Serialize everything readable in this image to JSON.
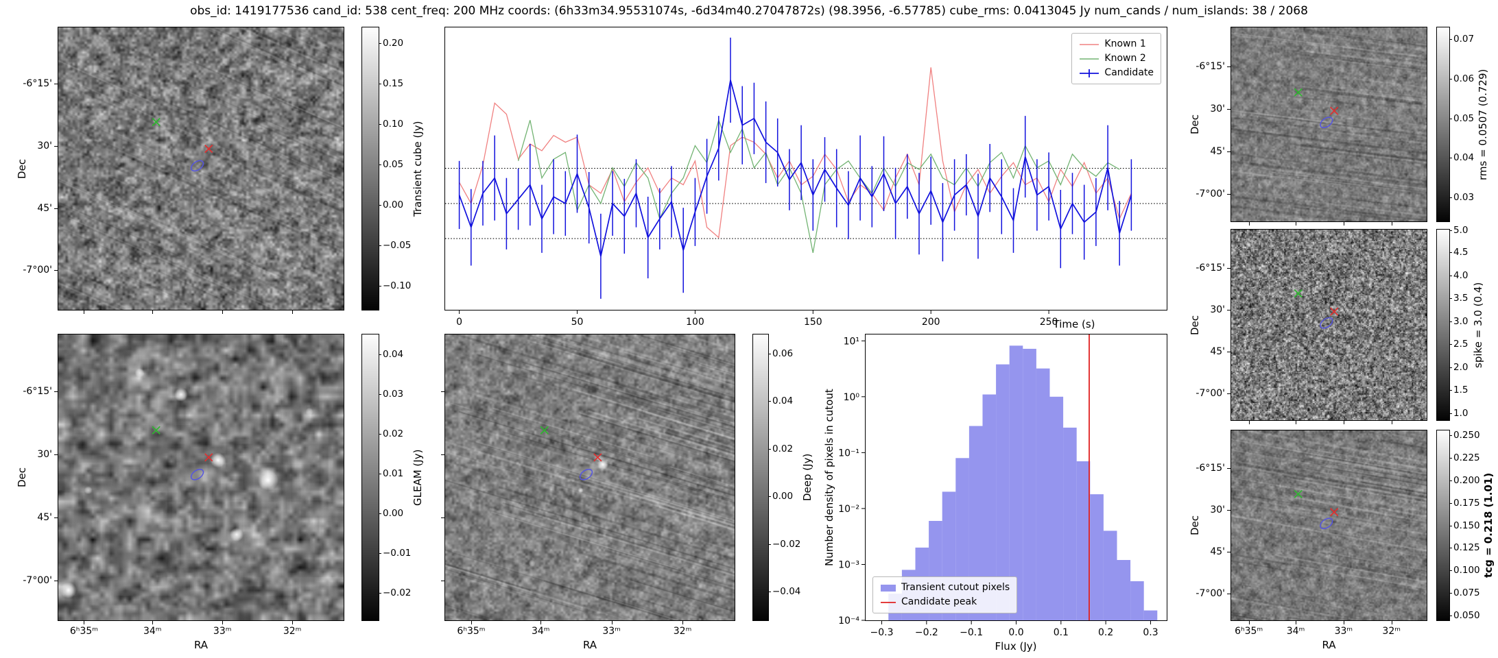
{
  "title": "obs_id: 1419177536 cand_id: 538 cent_freq: 200 MHz coords: (6h33m34.95531074s, -6d34m40.27047872s) (98.3956, -6.57785) cube_rms: 0.0413045 Jy num_cands / num_islands: 38 / 2068",
  "colors": {
    "candidate": "#1010dd",
    "known1": "#f08080",
    "known2": "#72b372",
    "hist_fill": "#7b7bea",
    "peak_line": "#e02020",
    "marker_green": "#2eb82e",
    "marker_red": "#e03030",
    "marker_blue": "#5555e0"
  },
  "axis": {
    "dec_label": "Dec",
    "ra_label": "RA",
    "dec_ticks": [
      {
        "label": "-6°15'",
        "pos": 0.2
      },
      {
        "label": "30'",
        "pos": 0.42
      },
      {
        "label": "45'",
        "pos": 0.64
      },
      {
        "label": "-7°00'",
        "pos": 0.86
      }
    ],
    "ra_ticks": [
      {
        "label": "6ʰ35ᵐ",
        "pos": 0.09
      },
      {
        "label": "34ᵐ",
        "pos": 0.33
      },
      {
        "label": "33ᵐ",
        "pos": 0.575
      },
      {
        "label": "32ᵐ",
        "pos": 0.82
      }
    ]
  },
  "markers": [
    {
      "name": "known-source-green",
      "shape": "x",
      "color": "#2eb82e",
      "x": 0.343,
      "y": 0.335
    },
    {
      "name": "known-source-red",
      "shape": "x",
      "color": "#e03030",
      "x": 0.527,
      "y": 0.43
    },
    {
      "name": "candidate-ellipse",
      "shape": "ellipse",
      "color": "#5555e0",
      "x": 0.487,
      "y": 0.49
    }
  ],
  "panels": {
    "transient": {
      "dec_labels": true,
      "ra_labels": false,
      "ylabel": "Dec"
    },
    "gleam": {
      "dec_labels": true,
      "ra_labels": true,
      "ylabel": "Dec",
      "xlabel": "RA"
    },
    "deep": {
      "dec_labels": false,
      "ra_labels": true,
      "xlabel": "RA"
    },
    "rms": {
      "dec_labels": true,
      "ra_labels": false,
      "ylabel": "Dec"
    },
    "spike": {
      "dec_labels": true,
      "ra_labels": false,
      "ylabel": "Dec"
    },
    "tcg": {
      "dec_labels": true,
      "ra_labels": true,
      "ylabel": "Dec",
      "xlabel": "RA"
    }
  },
  "colorbars": {
    "transient": {
      "label": "Transient cube (Jy)",
      "bold": false,
      "ticks": [
        {
          "label": "0.20",
          "pos": 0.057
        },
        {
          "label": "0.15",
          "pos": 0.2
        },
        {
          "label": "0.10",
          "pos": 0.343
        },
        {
          "label": "0.05",
          "pos": 0.486
        },
        {
          "label": "0.00",
          "pos": 0.629
        },
        {
          "label": "−0.05",
          "pos": 0.771
        },
        {
          "label": "−0.10",
          "pos": 0.914
        }
      ]
    },
    "gleam": {
      "label": "GLEAM (Jy)",
      "bold": false,
      "ticks": [
        {
          "label": "0.04",
          "pos": 0.069
        },
        {
          "label": "0.03",
          "pos": 0.208
        },
        {
          "label": "0.02",
          "pos": 0.347
        },
        {
          "label": "0.01",
          "pos": 0.486
        },
        {
          "label": "0.00",
          "pos": 0.625
        },
        {
          "label": "−0.01",
          "pos": 0.764
        },
        {
          "label": "−0.02",
          "pos": 0.903
        }
      ]
    },
    "deep": {
      "label": "Deep (Jy)",
      "bold": false,
      "ticks": [
        {
          "label": "0.06",
          "pos": 0.067
        },
        {
          "label": "0.04",
          "pos": 0.233
        },
        {
          "label": "0.02",
          "pos": 0.4
        },
        {
          "label": "0.00",
          "pos": 0.567
        },
        {
          "label": "−0.02",
          "pos": 0.733
        },
        {
          "label": "−0.04",
          "pos": 0.9
        }
      ]
    },
    "rms": {
      "label": "rms = 0.0507 (0.729)",
      "bold": false,
      "ticks": [
        {
          "label": "0.07",
          "pos": 0.061
        },
        {
          "label": "0.06",
          "pos": 0.265
        },
        {
          "label": "0.05",
          "pos": 0.469
        },
        {
          "label": "0.04",
          "pos": 0.673
        },
        {
          "label": "0.03",
          "pos": 0.878
        }
      ]
    },
    "spike": {
      "label": "spike = 3.0 (0.4)",
      "bold": false,
      "ticks": [
        {
          "label": "5.0",
          "pos": 0.005
        },
        {
          "label": "4.5",
          "pos": 0.12
        },
        {
          "label": "4.0",
          "pos": 0.241
        },
        {
          "label": "3.5",
          "pos": 0.361
        },
        {
          "label": "3.0",
          "pos": 0.482
        },
        {
          "label": "2.5",
          "pos": 0.602
        },
        {
          "label": "2.0",
          "pos": 0.723
        },
        {
          "label": "1.5",
          "pos": 0.843
        },
        {
          "label": "1.0",
          "pos": 0.964
        }
      ]
    },
    "tcg": {
      "label": "tcg = 0.218 (1.01)",
      "bold": true,
      "ticks": [
        {
          "label": "0.250",
          "pos": 0.024
        },
        {
          "label": "0.225",
          "pos": 0.143
        },
        {
          "label": "0.200",
          "pos": 0.262
        },
        {
          "label": "0.175",
          "pos": 0.381
        },
        {
          "label": "0.150",
          "pos": 0.5
        },
        {
          "label": "0.125",
          "pos": 0.619
        },
        {
          "label": "0.100",
          "pos": 0.738
        },
        {
          "label": "0.075",
          "pos": 0.857
        },
        {
          "label": "0.050",
          "pos": 0.976
        }
      ]
    }
  },
  "chart_data": [
    {
      "type": "line",
      "title": "",
      "xlabel": "Time (s)",
      "ylabel": "",
      "xlim": [
        -6,
        300
      ],
      "ylim": [
        -0.125,
        0.207
      ],
      "xticks": [
        0,
        50,
        100,
        150,
        200,
        250
      ],
      "hlines": [
        0.0413045,
        0.0,
        -0.0413045
      ],
      "legend_position": "top-right",
      "x": [
        0,
        5,
        10,
        15,
        20,
        25,
        30,
        35,
        40,
        45,
        50,
        55,
        60,
        65,
        70,
        75,
        80,
        85,
        90,
        95,
        100,
        105,
        110,
        115,
        120,
        125,
        130,
        135,
        140,
        145,
        150,
        155,
        160,
        165,
        170,
        175,
        180,
        185,
        190,
        195,
        200,
        205,
        210,
        215,
        220,
        225,
        230,
        235,
        240,
        245,
        250,
        255,
        260,
        265,
        270,
        275,
        280,
        285
      ],
      "series": [
        {
          "name": "Known 1",
          "color": "#f08080",
          "values": [
            0.025,
            0.0,
            0.045,
            0.118,
            0.105,
            0.052,
            0.07,
            0.062,
            0.08,
            0.072,
            0.078,
            0.022,
            0.012,
            0.04,
            0.002,
            0.025,
            0.042,
            0.012,
            0.03,
            0.022,
            0.05,
            -0.028,
            -0.04,
            0.068,
            0.078,
            0.072,
            0.058,
            0.03,
            0.05,
            0.022,
            0.032,
            0.058,
            0.04,
            0.002,
            0.022,
            0.012,
            -0.008,
            0.03,
            0.058,
            0.022,
            0.16,
            0.05,
            -0.01,
            0.022,
            0.04,
            0.012,
            0.032,
            0.048,
            0.022,
            0.03,
            0.002,
            0.04,
            0.02,
            0.048,
            0.012,
            0.03,
            -0.018,
            0.012
          ]
        },
        {
          "name": "Known 2",
          "color": "#72b372",
          "values": [
            null,
            null,
            null,
            null,
            null,
            0.05,
            0.098,
            0.03,
            0.052,
            0.06,
            -0.008,
            0.022,
            0.0,
            0.042,
            0.02,
            0.048,
            0.03,
            -0.018,
            0.012,
            0.03,
            0.068,
            0.048,
            0.098,
            0.06,
            0.088,
            0.042,
            0.06,
            0.022,
            0.042,
            0.012,
            -0.058,
            0.022,
            0.04,
            0.05,
            0.03,
            0.012,
            0.042,
            0.02,
            0.048,
            0.04,
            0.058,
            0.03,
            0.022,
            0.042,
            0.02,
            0.048,
            0.06,
            0.03,
            0.068,
            0.042,
            0.05,
            0.022,
            0.058,
            0.042,
            0.032,
            0.048,
            0.04,
            null
          ]
        },
        {
          "name": "Candidate",
          "color": "#1010dd",
          "values": [
            0.01,
            -0.028,
            0.012,
            0.03,
            -0.012,
            0.005,
            0.022,
            -0.018,
            0.008,
            0.0,
            0.035,
            -0.005,
            -0.062,
            0.0,
            -0.015,
            0.012,
            -0.04,
            -0.018,
            0.002,
            -0.055,
            -0.01,
            0.032,
            0.065,
            0.145,
            0.092,
            0.1,
            0.072,
            0.06,
            0.028,
            0.048,
            0.01,
            0.04,
            0.018,
            -0.002,
            0.03,
            0.008,
            0.035,
            0.0,
            0.02,
            -0.012,
            0.015,
            -0.022,
            0.01,
            0.022,
            -0.015,
            0.03,
            0.008,
            -0.02,
            0.055,
            0.01,
            0.02,
            -0.03,
            0.0,
            -0.022,
            -0.01,
            0.042,
            -0.035,
            0.01
          ],
          "errors": [
            0.04,
            0.045,
            0.038,
            0.05,
            0.042,
            0.036,
            0.048,
            0.04,
            0.044,
            0.038,
            0.046,
            0.042,
            0.05,
            0.038,
            0.044,
            0.04,
            0.048,
            0.036,
            0.042,
            0.05,
            0.04,
            0.044,
            0.038,
            0.05,
            0.046,
            0.042,
            0.048,
            0.04,
            0.036,
            0.044,
            0.042,
            0.038,
            0.046,
            0.04,
            0.05,
            0.036,
            0.044,
            0.042,
            0.038,
            0.048,
            0.04,
            0.046,
            0.042,
            0.036,
            0.05,
            0.04,
            0.044,
            0.038,
            0.048,
            0.042,
            0.04,
            0.046,
            0.036,
            0.044,
            0.04,
            0.05,
            0.038,
            0.042
          ]
        }
      ]
    },
    {
      "type": "bar",
      "title": "",
      "xlabel": "Flux (Jy)",
      "ylabel": "Number density of pixels in cutout",
      "xlim": [
        -0.336,
        0.336
      ],
      "ylim_log": [
        0.0001,
        13
      ],
      "bin_width": 0.03,
      "bar_color": "#7b7bea",
      "vline": 0.163,
      "vline_color": "#e02020",
      "bin_centers": [
        -0.27,
        -0.24,
        -0.21,
        -0.18,
        -0.15,
        -0.12,
        -0.09,
        -0.06,
        -0.03,
        0.0,
        0.03,
        0.06,
        0.09,
        0.12,
        0.15,
        0.18,
        0.21,
        0.24,
        0.27,
        0.3
      ],
      "values": [
        0.0003,
        0.0008,
        0.002,
        0.006,
        0.02,
        0.08,
        0.3,
        1.1,
        3.8,
        8.2,
        7.2,
        3.2,
        1.0,
        0.28,
        0.07,
        0.018,
        0.004,
        0.0012,
        0.0005,
        0.00015
      ],
      "xticks": [
        "−0.3",
        "−0.2",
        "−0.1",
        "0.0",
        "0.1",
        "0.2",
        "0.3"
      ],
      "yticks": [
        {
          "label": "10¹",
          "v": 10
        },
        {
          "label": "10⁰",
          "v": 1
        },
        {
          "label": "10⁻¹",
          "v": 0.1
        },
        {
          "label": "10⁻²",
          "v": 0.01
        },
        {
          "label": "10⁻³",
          "v": 0.001
        },
        {
          "label": "10⁻⁴",
          "v": 0.0001
        }
      ],
      "legend_position": "bottom-left",
      "legend": [
        {
          "label": "Transient cutout pixels",
          "color": "#7b7bea",
          "type": "patch"
        },
        {
          "label": "Candidate peak",
          "color": "#e02020",
          "type": "line"
        }
      ]
    }
  ]
}
